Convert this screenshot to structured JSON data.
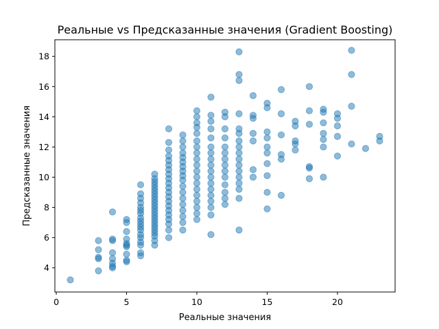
{
  "chart_data": {
    "type": "scatter",
    "title": "Реальные vs Предсказанные значения (Gradient Boosting)",
    "xlabel": "Реальные значения",
    "ylabel": "Предсказанные значения",
    "xlim": [
      -0.1,
      24.1
    ],
    "ylim": [
      2.4,
      19.1
    ],
    "xticks": [
      0,
      5,
      10,
      15,
      20
    ],
    "yticks": [
      4,
      6,
      8,
      10,
      12,
      14,
      16,
      18
    ],
    "grid": false,
    "marker_color": "#1f77b4",
    "marker_opacity": 0.5,
    "points": [
      [
        1,
        3.2
      ],
      [
        3,
        3.8
      ],
      [
        3,
        4.6
      ],
      [
        3,
        4.7
      ],
      [
        3,
        5.2
      ],
      [
        3,
        5.8
      ],
      [
        4,
        4.0
      ],
      [
        4,
        4.1
      ],
      [
        4,
        4.3
      ],
      [
        4,
        4.6
      ],
      [
        4,
        5.0
      ],
      [
        4,
        5.8
      ],
      [
        4,
        5.9
      ],
      [
        4,
        7.7
      ],
      [
        5,
        4.4
      ],
      [
        5,
        4.5
      ],
      [
        5,
        4.9
      ],
      [
        5,
        5.4
      ],
      [
        5,
        5.5
      ],
      [
        5,
        5.6
      ],
      [
        5,
        5.9
      ],
      [
        5,
        6.4
      ],
      [
        5,
        7.0
      ],
      [
        5,
        7.2
      ],
      [
        6,
        4.8
      ],
      [
        6,
        5.0
      ],
      [
        6,
        5.5
      ],
      [
        6,
        5.7
      ],
      [
        6,
        6.0
      ],
      [
        6,
        6.2
      ],
      [
        6,
        6.5
      ],
      [
        6,
        6.7
      ],
      [
        6,
        6.9
      ],
      [
        6,
        7.1
      ],
      [
        6,
        7.3
      ],
      [
        6,
        7.6
      ],
      [
        6,
        7.8
      ],
      [
        6,
        8.0
      ],
      [
        6,
        8.3
      ],
      [
        6,
        8.6
      ],
      [
        6,
        8.9
      ],
      [
        6,
        9.5
      ],
      [
        7,
        5.5
      ],
      [
        7,
        5.8
      ],
      [
        7,
        6.1
      ],
      [
        7,
        6.3
      ],
      [
        7,
        6.5
      ],
      [
        7,
        6.7
      ],
      [
        7,
        6.9
      ],
      [
        7,
        7.1
      ],
      [
        7,
        7.3
      ],
      [
        7,
        7.5
      ],
      [
        7,
        7.7
      ],
      [
        7,
        7.9
      ],
      [
        7,
        8.1
      ],
      [
        7,
        8.3
      ],
      [
        7,
        8.5
      ],
      [
        7,
        8.7
      ],
      [
        7,
        8.9
      ],
      [
        7,
        9.1
      ],
      [
        7,
        9.3
      ],
      [
        7,
        9.5
      ],
      [
        7,
        9.7
      ],
      [
        7,
        9.9
      ],
      [
        7,
        10.2
      ],
      [
        8,
        6.0
      ],
      [
        8,
        6.5
      ],
      [
        8,
        6.9
      ],
      [
        8,
        7.2
      ],
      [
        8,
        7.5
      ],
      [
        8,
        7.8
      ],
      [
        8,
        8.1
      ],
      [
        8,
        8.4
      ],
      [
        8,
        8.7
      ],
      [
        8,
        9.0
      ],
      [
        8,
        9.3
      ],
      [
        8,
        9.6
      ],
      [
        8,
        9.9
      ],
      [
        8,
        10.2
      ],
      [
        8,
        10.5
      ],
      [
        8,
        10.8
      ],
      [
        8,
        11.1
      ],
      [
        8,
        11.4
      ],
      [
        8,
        11.8
      ],
      [
        8,
        12.3
      ],
      [
        8,
        13.2
      ],
      [
        9,
        6.5
      ],
      [
        9,
        7.0
      ],
      [
        9,
        7.4
      ],
      [
        9,
        7.8
      ],
      [
        9,
        8.2
      ],
      [
        9,
        8.6
      ],
      [
        9,
        9.0
      ],
      [
        9,
        9.4
      ],
      [
        9,
        9.8
      ],
      [
        9,
        10.1
      ],
      [
        9,
        10.4
      ],
      [
        9,
        10.7
      ],
      [
        9,
        11.0
      ],
      [
        9,
        11.3
      ],
      [
        9,
        11.6
      ],
      [
        9,
        12.0
      ],
      [
        9,
        12.4
      ],
      [
        9,
        12.8
      ],
      [
        10,
        7.2
      ],
      [
        10,
        7.6
      ],
      [
        10,
        8.0
      ],
      [
        10,
        8.4
      ],
      [
        10,
        8.8
      ],
      [
        10,
        9.2
      ],
      [
        10,
        9.6
      ],
      [
        10,
        10.0
      ],
      [
        10,
        10.4
      ],
      [
        10,
        10.8
      ],
      [
        10,
        11.2
      ],
      [
        10,
        11.6
      ],
      [
        10,
        12.0
      ],
      [
        10,
        12.4
      ],
      [
        10,
        12.9
      ],
      [
        10,
        13.3
      ],
      [
        10,
        13.6
      ],
      [
        10,
        14.0
      ],
      [
        10,
        14.4
      ],
      [
        11,
        6.2
      ],
      [
        11,
        7.5
      ],
      [
        11,
        8.0
      ],
      [
        11,
        8.4
      ],
      [
        11,
        8.8
      ],
      [
        11,
        9.2
      ],
      [
        11,
        9.6
      ],
      [
        11,
        10.0
      ],
      [
        11,
        10.4
      ],
      [
        11,
        10.8
      ],
      [
        11,
        11.2
      ],
      [
        11,
        11.6
      ],
      [
        11,
        12.0
      ],
      [
        11,
        12.6
      ],
      [
        11,
        13.2
      ],
      [
        11,
        13.7
      ],
      [
        11,
        14.1
      ],
      [
        11,
        15.3
      ],
      [
        12,
        8.2
      ],
      [
        12,
        8.6
      ],
      [
        12,
        9.0
      ],
      [
        12,
        9.5
      ],
      [
        12,
        10.0
      ],
      [
        12,
        10.4
      ],
      [
        12,
        10.8
      ],
      [
        12,
        11.2
      ],
      [
        12,
        11.6
      ],
      [
        12,
        12.0
      ],
      [
        12,
        12.6
      ],
      [
        12,
        13.2
      ],
      [
        12,
        14.0
      ],
      [
        12,
        14.3
      ],
      [
        13,
        6.5
      ],
      [
        13,
        8.6
      ],
      [
        13,
        9.2
      ],
      [
        13,
        9.6
      ],
      [
        13,
        10.0
      ],
      [
        13,
        10.4
      ],
      [
        13,
        10.8
      ],
      [
        13,
        11.2
      ],
      [
        13,
        11.6
      ],
      [
        13,
        12.0
      ],
      [
        13,
        12.4
      ],
      [
        13,
        12.9
      ],
      [
        13,
        13.2
      ],
      [
        13,
        14.2
      ],
      [
        13,
        16.4
      ],
      [
        13,
        16.8
      ],
      [
        13,
        18.3
      ],
      [
        14,
        10.0
      ],
      [
        14,
        10.5
      ],
      [
        14,
        12.4
      ],
      [
        14,
        12.9
      ],
      [
        14,
        13.9
      ],
      [
        14,
        14.1
      ],
      [
        14,
        15.4
      ],
      [
        15,
        7.9
      ],
      [
        15,
        9.0
      ],
      [
        15,
        10.1
      ],
      [
        15,
        10.9
      ],
      [
        15,
        11.6
      ],
      [
        15,
        12.0
      ],
      [
        15,
        12.6
      ],
      [
        15,
        13.0
      ],
      [
        15,
        14.6
      ],
      [
        15,
        14.9
      ],
      [
        16,
        8.8
      ],
      [
        16,
        11.2
      ],
      [
        16,
        11.5
      ],
      [
        16,
        12.8
      ],
      [
        16,
        14.2
      ],
      [
        16,
        15.8
      ],
      [
        17,
        11.8
      ],
      [
        17,
        12.2
      ],
      [
        17,
        12.4
      ],
      [
        17,
        13.4
      ],
      [
        17,
        13.7
      ],
      [
        18,
        9.9
      ],
      [
        18,
        10.6
      ],
      [
        18,
        10.7
      ],
      [
        18,
        13.5
      ],
      [
        18,
        14.4
      ],
      [
        18,
        16.0
      ],
      [
        19,
        10.0
      ],
      [
        19,
        12.0
      ],
      [
        19,
        12.5
      ],
      [
        19,
        12.9
      ],
      [
        19,
        13.6
      ],
      [
        19,
        14.3
      ],
      [
        19,
        14.5
      ],
      [
        20,
        11.4
      ],
      [
        20,
        12.7
      ],
      [
        20,
        13.4
      ],
      [
        20,
        13.9
      ],
      [
        20,
        14.2
      ],
      [
        21,
        12.2
      ],
      [
        21,
        14.7
      ],
      [
        21,
        16.8
      ],
      [
        21,
        18.4
      ],
      [
        22,
        11.9
      ],
      [
        23,
        12.4
      ],
      [
        23,
        12.7
      ]
    ]
  }
}
